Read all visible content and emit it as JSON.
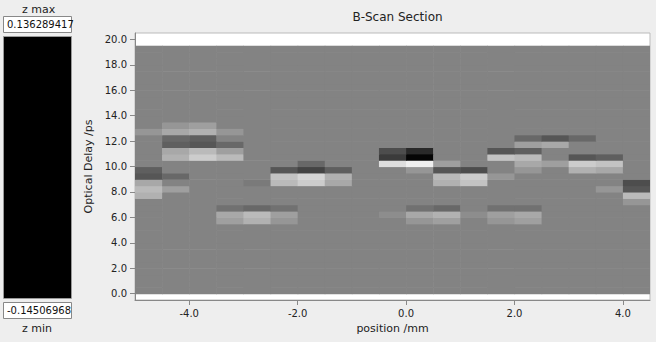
{
  "chart_data": {
    "type": "heatmap",
    "title": "B-Scan Section",
    "x_label": "position /mm",
    "y_label": "Optical Delay /ps",
    "x": [
      -4.75,
      -4.25,
      -3.75,
      -3.25,
      -2.75,
      -2.25,
      -1.75,
      -1.25,
      -0.75,
      -0.25,
      0.25,
      0.75,
      1.25,
      1.75,
      2.25,
      2.75,
      3.25,
      3.75,
      4.25
    ],
    "y": [
      0.25,
      0.75,
      1.25,
      1.75,
      2.25,
      2.75,
      3.25,
      3.75,
      4.25,
      4.75,
      5.25,
      5.75,
      6.25,
      6.75,
      7.25,
      7.75,
      8.25,
      8.75,
      9.25,
      9.75,
      10.25,
      10.75,
      11.25,
      11.75,
      12.25,
      12.75,
      13.25,
      13.75,
      14.25,
      14.75,
      15.25,
      15.75,
      16.25,
      16.75,
      17.25,
      17.75,
      18.25,
      18.75,
      19.25
    ],
    "z": [
      [
        0,
        0,
        0,
        0,
        0,
        0,
        0,
        0,
        0,
        0,
        0,
        0,
        0,
        0,
        0,
        0,
        0,
        0,
        0
      ],
      [
        0,
        0,
        0,
        0,
        0,
        0,
        0,
        0,
        0,
        0,
        0,
        0,
        0,
        0,
        0,
        0,
        0,
        0,
        0
      ],
      [
        0,
        0,
        0,
        0,
        0,
        0,
        0,
        0,
        0,
        0,
        0,
        0,
        0,
        0,
        0,
        0,
        0,
        0,
        0
      ],
      [
        0,
        0,
        0,
        0,
        0,
        0,
        0,
        0,
        0,
        0,
        0,
        0,
        0,
        0,
        0,
        0,
        0,
        0,
        0
      ],
      [
        0,
        0,
        0,
        0,
        0,
        0,
        0,
        0,
        0,
        0,
        0,
        0,
        0,
        0,
        0,
        0,
        0,
        0,
        0
      ],
      [
        0,
        0,
        0,
        0,
        0,
        0,
        0,
        0,
        0,
        0,
        0,
        0,
        0,
        0,
        0,
        0,
        0,
        0,
        0
      ],
      [
        0,
        0,
        0,
        0,
        0,
        0,
        0,
        0,
        0,
        0,
        0,
        0,
        0,
        0,
        0,
        0,
        0,
        0,
        0
      ],
      [
        0,
        0,
        0,
        0,
        0,
        0,
        0,
        0,
        0,
        0,
        0,
        0,
        0,
        0,
        0,
        0,
        0,
        0,
        0
      ],
      [
        0,
        0,
        0,
        0,
        0,
        0,
        0,
        0,
        0,
        0,
        0,
        0,
        0,
        0,
        0,
        0,
        0,
        0,
        0
      ],
      [
        0,
        0,
        0,
        0,
        0,
        0,
        0,
        0,
        0,
        0,
        0,
        0,
        0,
        0,
        0,
        0,
        0,
        0,
        0
      ],
      [
        0,
        0,
        0,
        0,
        0,
        0,
        0,
        0,
        0,
        0,
        0,
        0,
        0,
        0,
        0,
        0,
        0,
        0,
        0
      ],
      [
        0,
        0,
        0,
        0.03,
        0.05,
        0.02,
        0,
        0,
        0,
        0,
        0.02,
        0.03,
        0,
        0.02,
        0.03,
        0,
        0,
        0,
        0
      ],
      [
        0,
        0,
        0,
        0.04,
        0.06,
        0.03,
        0,
        0,
        0,
        0.01,
        0.04,
        0.05,
        0.01,
        0.03,
        0.04,
        0,
        0,
        0,
        0
      ],
      [
        0,
        0,
        0,
        -0.02,
        -0.03,
        -0.02,
        0,
        0,
        0,
        0,
        -0.02,
        -0.03,
        0,
        -0.02,
        -0.02,
        0,
        0,
        0,
        0
      ],
      [
        0,
        0,
        0,
        0,
        0,
        0,
        0,
        0,
        0,
        0,
        0,
        0,
        0,
        0,
        0,
        0,
        0,
        0,
        0.02
      ],
      [
        0.05,
        0,
        0,
        0,
        0,
        0,
        0,
        0,
        0,
        0,
        0,
        0,
        0,
        0,
        0,
        0,
        0,
        0,
        0.06
      ],
      [
        0.06,
        0.03,
        0,
        0,
        0,
        0,
        0,
        0,
        0,
        0,
        0,
        0,
        0,
        0,
        0,
        0,
        0,
        0.02,
        -0.05
      ],
      [
        0.04,
        0,
        0,
        0,
        -0.01,
        0.06,
        0.08,
        0.04,
        0,
        0,
        0,
        0.05,
        0.07,
        0,
        0,
        0,
        0,
        0,
        -0.06
      ],
      [
        -0.05,
        -0.03,
        0,
        0,
        0,
        0.07,
        0.09,
        0.05,
        0,
        0,
        0,
        0.06,
        0.08,
        0.02,
        0,
        0,
        0,
        0,
        0
      ],
      [
        -0.04,
        0,
        0,
        0,
        0,
        -0.05,
        -0.07,
        -0.04,
        0,
        0,
        0.02,
        -0.05,
        -0.06,
        0,
        0.02,
        0,
        0.05,
        0.04,
        0
      ],
      [
        0,
        0,
        0,
        0,
        0,
        0,
        -0.03,
        0,
        0,
        0.1,
        0.12,
        0.03,
        0,
        0,
        0.04,
        0.03,
        0.08,
        0.07,
        0
      ],
      [
        0,
        0.05,
        0.08,
        0.06,
        0,
        0,
        0,
        0,
        0,
        -0.08,
        -0.14,
        0,
        0,
        0.07,
        0.06,
        0,
        -0.05,
        -0.04,
        0
      ],
      [
        0,
        0.04,
        0.06,
        0.03,
        0,
        0,
        0,
        0,
        0,
        -0.06,
        -0.1,
        0,
        0,
        -0.05,
        -0.04,
        0,
        0,
        0,
        0
      ],
      [
        0,
        -0.04,
        -0.05,
        -0.03,
        0,
        0,
        0,
        0,
        0,
        0,
        0,
        0,
        0,
        0,
        0.03,
        0.04,
        0,
        0,
        0
      ],
      [
        0,
        -0.03,
        -0.04,
        0,
        0,
        0,
        0,
        0,
        0,
        0,
        0,
        0,
        0,
        0,
        -0.03,
        -0.05,
        -0.03,
        0,
        0
      ],
      [
        0.02,
        0.04,
        0.05,
        0.02,
        0,
        0,
        0,
        0,
        0,
        0,
        0,
        0,
        0,
        0,
        0,
        0,
        0,
        0,
        0
      ],
      [
        0,
        0.02,
        0.03,
        0,
        0,
        0,
        0,
        0,
        0,
        0,
        0,
        0,
        0,
        0,
        0,
        0,
        0,
        0,
        0
      ],
      [
        0,
        0,
        0,
        0,
        0,
        0,
        0,
        0,
        0,
        0,
        0,
        0,
        0,
        0,
        0,
        0,
        0,
        0,
        0
      ],
      [
        0,
        0,
        0,
        0,
        0,
        0,
        0,
        0,
        0,
        0,
        0,
        0,
        0,
        0,
        0,
        0,
        0,
        0,
        0
      ],
      [
        0,
        0,
        0,
        0,
        0,
        0,
        0,
        0,
        0,
        0,
        0,
        0,
        0,
        0,
        0,
        0,
        0,
        0,
        0
      ],
      [
        0,
        0,
        0,
        0,
        0,
        0,
        0,
        0,
        0,
        0,
        0,
        0,
        0,
        0,
        0,
        0,
        0,
        0,
        0
      ],
      [
        0,
        0,
        0,
        0,
        0,
        0,
        0,
        0,
        0,
        0,
        0,
        0,
        0,
        0,
        0,
        0,
        0,
        0,
        0
      ],
      [
        0,
        0,
        0,
        0,
        0,
        0,
        0,
        0,
        0,
        0,
        0,
        0,
        0,
        0,
        0,
        0,
        0,
        0,
        0
      ],
      [
        0,
        0,
        0,
        0,
        0,
        0,
        0,
        0,
        0,
        0,
        0,
        0,
        0,
        0,
        0,
        0,
        0,
        0,
        0
      ],
      [
        0,
        0,
        0,
        0,
        0,
        0,
        0,
        0,
        0,
        0,
        0,
        0,
        0,
        0,
        0,
        0,
        0,
        0,
        0
      ],
      [
        0,
        0,
        0,
        0,
        0,
        0,
        0,
        0,
        0,
        0,
        0,
        0,
        0,
        0,
        0,
        0,
        0,
        0,
        0
      ],
      [
        0,
        0,
        0,
        0,
        0,
        0,
        0,
        0,
        0,
        0,
        0,
        0,
        0,
        0,
        0,
        0,
        0,
        0,
        0
      ],
      [
        0,
        0,
        0,
        0,
        0,
        0,
        0,
        0,
        0,
        0,
        0,
        0,
        0,
        0,
        0,
        0,
        0,
        0,
        0
      ],
      [
        0,
        0,
        0,
        0,
        0,
        0,
        0,
        0,
        0,
        0,
        0,
        0,
        0,
        0,
        0,
        0,
        0,
        0,
        0
      ]
    ],
    "xlim": [
      -5,
      4.5
    ],
    "xticks": [
      {
        "value": -4,
        "label": "-4.0"
      },
      {
        "value": -2,
        "label": "-2.0"
      },
      {
        "value": 0,
        "label": "0.0"
      },
      {
        "value": 2,
        "label": "2.0"
      },
      {
        "value": 4,
        "label": "4.0"
      }
    ],
    "ylim": [
      -0.5,
      20.5
    ],
    "yticks": [
      {
        "value": 0,
        "label": "0.0"
      },
      {
        "value": 2,
        "label": "2.0"
      },
      {
        "value": 4,
        "label": "4.0"
      },
      {
        "value": 6,
        "label": "6.0"
      },
      {
        "value": 8,
        "label": "8.0"
      },
      {
        "value": 10,
        "label": "10.0"
      },
      {
        "value": 12,
        "label": "12.0"
      },
      {
        "value": 14,
        "label": "14.0"
      },
      {
        "value": 16,
        "label": "16.0"
      },
      {
        "value": 18,
        "label": "18.0"
      },
      {
        "value": 20,
        "label": "20.0"
      }
    ],
    "colorbar": {
      "range": [
        -0.14506968,
        0.136289417
      ],
      "ticks": [
        -0.14506968,
        0.136289417
      ],
      "max_title": "z max",
      "min_title": "z min",
      "colors": [
        "#000000",
        "#ffffff"
      ]
    },
    "grid": false
  }
}
